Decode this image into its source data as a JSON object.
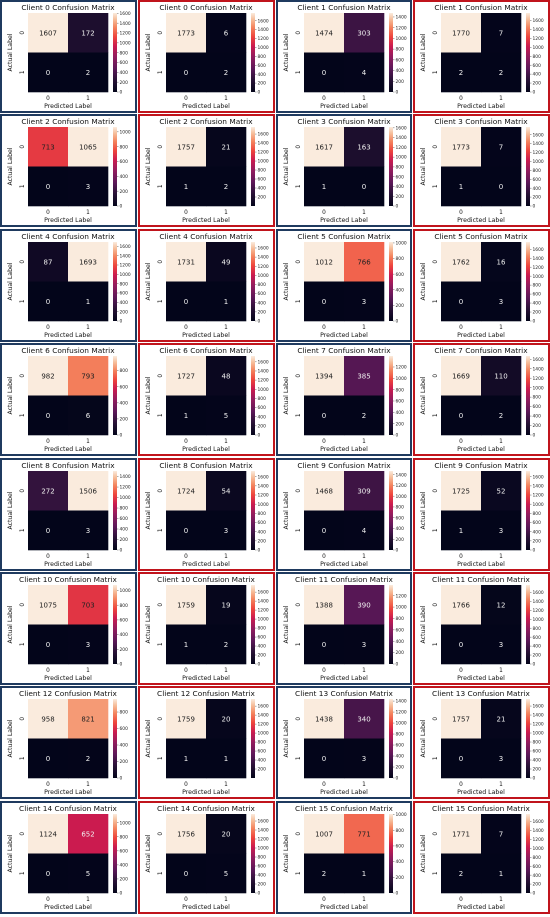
{
  "chart_data": [
    {
      "type": "heatmap",
      "title": "Client 0 Confusion Matrix",
      "xlabel": "Predicted Label",
      "ylabel": "Actual Label",
      "x_ticks": [
        "0",
        "1"
      ],
      "y_ticks": [
        "0",
        "1"
      ],
      "values": [
        [
          1607,
          172
        ],
        [
          0,
          2
        ]
      ],
      "colorbar_ticks": [
        0,
        200,
        400,
        600,
        800,
        1000,
        1200,
        1400,
        1600
      ],
      "colorbar_range": [
        0,
        1607
      ],
      "frame": "blue"
    },
    {
      "type": "heatmap",
      "title": "Client 0 Confusion Matrix",
      "xlabel": "Predicted Label",
      "ylabel": "Actual Label",
      "x_ticks": [
        "0",
        "1"
      ],
      "y_ticks": [
        "0",
        "1"
      ],
      "values": [
        [
          1773,
          6
        ],
        [
          0,
          2
        ]
      ],
      "colorbar_ticks": [
        0,
        200,
        400,
        600,
        800,
        1000,
        1200,
        1400,
        1600
      ],
      "colorbar_range": [
        0,
        1773
      ],
      "frame": "red"
    },
    {
      "type": "heatmap",
      "title": "Client 1 Confusion Matrix",
      "xlabel": "Predicted Label",
      "ylabel": "Actual Label",
      "x_ticks": [
        "0",
        "1"
      ],
      "y_ticks": [
        "0",
        "1"
      ],
      "values": [
        [
          1474,
          303
        ],
        [
          0,
          4
        ]
      ],
      "colorbar_ticks": [
        0,
        200,
        400,
        600,
        800,
        1000,
        1200,
        1400
      ],
      "colorbar_range": [
        0,
        1474
      ],
      "frame": "blue"
    },
    {
      "type": "heatmap",
      "title": "Client 1 Confusion Matrix",
      "xlabel": "Predicted Label",
      "ylabel": "Actual Label",
      "x_ticks": [
        "0",
        "1"
      ],
      "y_ticks": [
        "0",
        "1"
      ],
      "values": [
        [
          1770,
          7
        ],
        [
          2,
          2
        ]
      ],
      "colorbar_ticks": [
        0,
        200,
        400,
        600,
        800,
        1000,
        1200,
        1400,
        1600
      ],
      "colorbar_range": [
        0,
        1770
      ],
      "frame": "red"
    },
    {
      "type": "heatmap",
      "title": "Client 2 Confusion Matrix",
      "xlabel": "Predicted Label",
      "ylabel": "Actual Label",
      "x_ticks": [
        "0",
        "1"
      ],
      "y_ticks": [
        "0",
        "1"
      ],
      "values": [
        [
          713,
          1065
        ],
        [
          0,
          3
        ]
      ],
      "colorbar_ticks": [
        0,
        200,
        400,
        600,
        800,
        1000
      ],
      "colorbar_range": [
        0,
        1065
      ],
      "frame": "blue"
    },
    {
      "type": "heatmap",
      "title": "Client 2 Confusion Matrix",
      "xlabel": "Predicted Label",
      "ylabel": "Actual Label",
      "x_ticks": [
        "0",
        "1"
      ],
      "y_ticks": [
        "0",
        "1"
      ],
      "values": [
        [
          1757,
          21
        ],
        [
          1,
          2
        ]
      ],
      "colorbar_ticks": [
        200,
        400,
        600,
        800,
        1000,
        1200,
        1400,
        1600
      ],
      "colorbar_range": [
        0,
        1757
      ],
      "frame": "red"
    },
    {
      "type": "heatmap",
      "title": "Client 3 Confusion Matrix",
      "xlabel": "Predicted Label",
      "ylabel": "Actual Label",
      "x_ticks": [
        "0",
        "1"
      ],
      "y_ticks": [
        "0",
        "1"
      ],
      "values": [
        [
          1617,
          163
        ],
        [
          1,
          0
        ]
      ],
      "colorbar_ticks": [
        0,
        200,
        400,
        600,
        800,
        1000,
        1200,
        1400,
        1600
      ],
      "colorbar_range": [
        0,
        1617
      ],
      "frame": "blue"
    },
    {
      "type": "heatmap",
      "title": "Client 3 Confusion Matrix",
      "xlabel": "Predicted Label",
      "ylabel": "Actual Label",
      "x_ticks": [
        "0",
        "1"
      ],
      "y_ticks": [
        "0",
        "1"
      ],
      "values": [
        [
          1773,
          7
        ],
        [
          1,
          0
        ]
      ],
      "colorbar_ticks": [
        0,
        200,
        400,
        600,
        800,
        1000,
        1200,
        1400,
        1600
      ],
      "colorbar_range": [
        0,
        1773
      ],
      "frame": "red"
    },
    {
      "type": "heatmap",
      "title": "Client 4 Confusion Matrix",
      "xlabel": "Predicted Label",
      "ylabel": "Actual Label",
      "x_ticks": [
        "0",
        "1"
      ],
      "y_ticks": [
        "0",
        "1"
      ],
      "values": [
        [
          87,
          1693
        ],
        [
          0,
          1
        ]
      ],
      "colorbar_ticks": [
        0,
        200,
        400,
        600,
        800,
        1000,
        1200,
        1400,
        1600
      ],
      "colorbar_range": [
        0,
        1693
      ],
      "frame": "blue"
    },
    {
      "type": "heatmap",
      "title": "Client 4 Confusion Matrix",
      "xlabel": "Predicted Label",
      "ylabel": "Actual Label",
      "x_ticks": [
        "0",
        "1"
      ],
      "y_ticks": [
        "0",
        "1"
      ],
      "values": [
        [
          1731,
          49
        ],
        [
          0,
          1
        ]
      ],
      "colorbar_ticks": [
        0,
        200,
        400,
        600,
        800,
        1000,
        1200,
        1400,
        1600
      ],
      "colorbar_range": [
        0,
        1731
      ],
      "frame": "red"
    },
    {
      "type": "heatmap",
      "title": "Client 5 Confusion Matrix",
      "xlabel": "Predicted Label",
      "ylabel": "Actual Label",
      "x_ticks": [
        "0",
        "1"
      ],
      "y_ticks": [
        "0",
        "1"
      ],
      "values": [
        [
          1012,
          766
        ],
        [
          0,
          3
        ]
      ],
      "colorbar_ticks": [
        0,
        200,
        400,
        600,
        800,
        1000
      ],
      "colorbar_range": [
        0,
        1012
      ],
      "frame": "blue"
    },
    {
      "type": "heatmap",
      "title": "Client 5 Confusion Matrix",
      "xlabel": "Predicted Label",
      "ylabel": "Actual Label",
      "x_ticks": [
        "0",
        "1"
      ],
      "y_ticks": [
        "0",
        "1"
      ],
      "values": [
        [
          1762,
          16
        ],
        [
          0,
          3
        ]
      ],
      "colorbar_ticks": [
        0,
        200,
        400,
        600,
        800,
        1000,
        1200,
        1400,
        1600
      ],
      "colorbar_range": [
        0,
        1762
      ],
      "frame": "red"
    },
    {
      "type": "heatmap",
      "title": "Client 6 Confusion Matrix",
      "xlabel": "Predicted Label",
      "ylabel": "Actual Label",
      "x_ticks": [
        "0",
        "1"
      ],
      "y_ticks": [
        "0",
        "1"
      ],
      "values": [
        [
          982,
          793
        ],
        [
          0,
          6
        ]
      ],
      "colorbar_ticks": [
        0,
        200,
        400,
        600,
        800
      ],
      "colorbar_range": [
        0,
        982
      ],
      "frame": "blue"
    },
    {
      "type": "heatmap",
      "title": "Client 6 Confusion Matrix",
      "xlabel": "Predicted Label",
      "ylabel": "Actual Label",
      "x_ticks": [
        "0",
        "1"
      ],
      "y_ticks": [
        "0",
        "1"
      ],
      "values": [
        [
          1727,
          48
        ],
        [
          1,
          5
        ]
      ],
      "colorbar_ticks": [
        0,
        200,
        400,
        600,
        800,
        1000,
        1200,
        1400,
        1600
      ],
      "colorbar_range": [
        0,
        1727
      ],
      "frame": "red"
    },
    {
      "type": "heatmap",
      "title": "Client 7 Confusion Matrix",
      "xlabel": "Predicted Label",
      "ylabel": "Actual Label",
      "x_ticks": [
        "0",
        "1"
      ],
      "y_ticks": [
        "0",
        "1"
      ],
      "values": [
        [
          1394,
          385
        ],
        [
          0,
          2
        ]
      ],
      "colorbar_ticks": [
        0,
        200,
        400,
        600,
        800,
        1000,
        1200
      ],
      "colorbar_range": [
        0,
        1394
      ],
      "frame": "blue"
    },
    {
      "type": "heatmap",
      "title": "Client 7 Confusion Matrix",
      "xlabel": "Predicted Label",
      "ylabel": "Actual Label",
      "x_ticks": [
        "0",
        "1"
      ],
      "y_ticks": [
        "0",
        "1"
      ],
      "values": [
        [
          1669,
          110
        ],
        [
          0,
          2
        ]
      ],
      "colorbar_ticks": [
        0,
        200,
        400,
        600,
        800,
        1000,
        1200,
        1400,
        1600
      ],
      "colorbar_range": [
        0,
        1669
      ],
      "frame": "red"
    },
    {
      "type": "heatmap",
      "title": "Client 8 Confusion Matrix",
      "xlabel": "Predicted Label",
      "ylabel": "Actual Label",
      "x_ticks": [
        "0",
        "1"
      ],
      "y_ticks": [
        "0",
        "1"
      ],
      "values": [
        [
          272,
          1506
        ],
        [
          0,
          3
        ]
      ],
      "colorbar_ticks": [
        0,
        200,
        400,
        600,
        800,
        1000,
        1200,
        1400
      ],
      "colorbar_range": [
        0,
        1506
      ],
      "frame": "blue"
    },
    {
      "type": "heatmap",
      "title": "Client 8 Confusion Matrix",
      "xlabel": "Predicted Label",
      "ylabel": "Actual Label",
      "x_ticks": [
        "0",
        "1"
      ],
      "y_ticks": [
        "0",
        "1"
      ],
      "values": [
        [
          1724,
          54
        ],
        [
          0,
          3
        ]
      ],
      "colorbar_ticks": [
        0,
        200,
        400,
        600,
        800,
        1000,
        1200,
        1400,
        1600
      ],
      "colorbar_range": [
        0,
        1724
      ],
      "frame": "red"
    },
    {
      "type": "heatmap",
      "title": "Client 9 Confusion Matrix",
      "xlabel": "Predicted Label",
      "ylabel": "Actual Label",
      "x_ticks": [
        "0",
        "1"
      ],
      "y_ticks": [
        "0",
        "1"
      ],
      "values": [
        [
          1468,
          309
        ],
        [
          0,
          4
        ]
      ],
      "colorbar_ticks": [
        0,
        200,
        400,
        600,
        800,
        1000,
        1200,
        1400
      ],
      "colorbar_range": [
        0,
        1468
      ],
      "frame": "blue"
    },
    {
      "type": "heatmap",
      "title": "Client 9 Confusion Matrix",
      "xlabel": "Predicted Label",
      "ylabel": "Actual Label",
      "x_ticks": [
        "0",
        "1"
      ],
      "y_ticks": [
        "0",
        "1"
      ],
      "values": [
        [
          1725,
          52
        ],
        [
          1,
          3
        ]
      ],
      "colorbar_ticks": [
        0,
        200,
        400,
        600,
        800,
        1000,
        1200,
        1400,
        1600
      ],
      "colorbar_range": [
        0,
        1725
      ],
      "frame": "red"
    },
    {
      "type": "heatmap",
      "title": "Client 10 Confusion Matrix",
      "xlabel": "Predicted Label",
      "ylabel": "Actual Label",
      "x_ticks": [
        "0",
        "1"
      ],
      "y_ticks": [
        "0",
        "1"
      ],
      "values": [
        [
          1075,
          703
        ],
        [
          0,
          3
        ]
      ],
      "colorbar_ticks": [
        0,
        200,
        400,
        600,
        800,
        1000
      ],
      "colorbar_range": [
        0,
        1075
      ],
      "frame": "blue"
    },
    {
      "type": "heatmap",
      "title": "Client 10 Confusion Matrix",
      "xlabel": "Predicted Label",
      "ylabel": "Actual Label",
      "x_ticks": [
        "0",
        "1"
      ],
      "y_ticks": [
        "0",
        "1"
      ],
      "values": [
        [
          1759,
          19
        ],
        [
          1,
          2
        ]
      ],
      "colorbar_ticks": [
        0,
        200,
        400,
        600,
        800,
        1000,
        1200,
        1400,
        1600
      ],
      "colorbar_range": [
        0,
        1759
      ],
      "frame": "red"
    },
    {
      "type": "heatmap",
      "title": "Client 11 Confusion Matrix",
      "xlabel": "Predicted Label",
      "ylabel": "Actual Label",
      "x_ticks": [
        "0",
        "1"
      ],
      "y_ticks": [
        "0",
        "1"
      ],
      "values": [
        [
          1388,
          390
        ],
        [
          0,
          3
        ]
      ],
      "colorbar_ticks": [
        0,
        200,
        400,
        600,
        800,
        1000,
        1200
      ],
      "colorbar_range": [
        0,
        1388
      ],
      "frame": "blue"
    },
    {
      "type": "heatmap",
      "title": "Client 11 Confusion Matrix",
      "xlabel": "Predicted Label",
      "ylabel": "Actual Label",
      "x_ticks": [
        "0",
        "1"
      ],
      "y_ticks": [
        "0",
        "1"
      ],
      "values": [
        [
          1766,
          12
        ],
        [
          0,
          3
        ]
      ],
      "colorbar_ticks": [
        0,
        200,
        400,
        600,
        800,
        1000,
        1200,
        1400,
        1600
      ],
      "colorbar_range": [
        0,
        1766
      ],
      "frame": "red"
    },
    {
      "type": "heatmap",
      "title": "Client 12 Confusion Matrix",
      "xlabel": "Predicted Label",
      "ylabel": "Actual Label",
      "x_ticks": [
        "0",
        "1"
      ],
      "y_ticks": [
        "0",
        "1"
      ],
      "values": [
        [
          958,
          821
        ],
        [
          0,
          2
        ]
      ],
      "colorbar_ticks": [
        0,
        200,
        400,
        600,
        800
      ],
      "colorbar_range": [
        0,
        958
      ],
      "frame": "blue"
    },
    {
      "type": "heatmap",
      "title": "Client 12 Confusion Matrix",
      "xlabel": "Predicted Label",
      "ylabel": "Actual Label",
      "x_ticks": [
        "0",
        "1"
      ],
      "y_ticks": [
        "0",
        "1"
      ],
      "values": [
        [
          1759,
          20
        ],
        [
          1,
          1
        ]
      ],
      "colorbar_ticks": [
        200,
        400,
        600,
        800,
        1000,
        1200,
        1400,
        1600
      ],
      "colorbar_range": [
        0,
        1759
      ],
      "frame": "red"
    },
    {
      "type": "heatmap",
      "title": "Client 13 Confusion Matrix",
      "xlabel": "Predicted Label",
      "ylabel": "Actual Label",
      "x_ticks": [
        "0",
        "1"
      ],
      "y_ticks": [
        "0",
        "1"
      ],
      "values": [
        [
          1438,
          340
        ],
        [
          0,
          3
        ]
      ],
      "colorbar_ticks": [
        0,
        200,
        400,
        600,
        800,
        1000,
        1200,
        1400
      ],
      "colorbar_range": [
        0,
        1438
      ],
      "frame": "blue"
    },
    {
      "type": "heatmap",
      "title": "Client 13 Confusion Matrix",
      "xlabel": "Predicted Label",
      "ylabel": "Actual Label",
      "x_ticks": [
        "0",
        "1"
      ],
      "y_ticks": [
        "0",
        "1"
      ],
      "values": [
        [
          1757,
          21
        ],
        [
          0,
          3
        ]
      ],
      "colorbar_ticks": [
        0,
        200,
        400,
        600,
        800,
        1000,
        1200,
        1400,
        1600
      ],
      "colorbar_range": [
        0,
        1757
      ],
      "frame": "red"
    },
    {
      "type": "heatmap",
      "title": "Client 14 Confusion Matrix",
      "xlabel": "Predicted Label",
      "ylabel": "Actual Label",
      "x_ticks": [
        "0",
        "1"
      ],
      "y_ticks": [
        "0",
        "1"
      ],
      "values": [
        [
          1124,
          652
        ],
        [
          0,
          5
        ]
      ],
      "colorbar_ticks": [
        0,
        200,
        400,
        600,
        800,
        1000
      ],
      "colorbar_range": [
        0,
        1124
      ],
      "frame": "blue"
    },
    {
      "type": "heatmap",
      "title": "Client 14 Confusion Matrix",
      "xlabel": "Predicted Label",
      "ylabel": "Actual Label",
      "x_ticks": [
        "0",
        "1"
      ],
      "y_ticks": [
        "0",
        "1"
      ],
      "values": [
        [
          1756,
          20
        ],
        [
          0,
          5
        ]
      ],
      "colorbar_ticks": [
        0,
        200,
        400,
        600,
        800,
        1000,
        1200,
        1400,
        1600
      ],
      "colorbar_range": [
        0,
        1756
      ],
      "frame": "red"
    },
    {
      "type": "heatmap",
      "title": "Client 15 Confusion Matrix",
      "xlabel": "Predicted Label",
      "ylabel": "Actual Label",
      "x_ticks": [
        "0",
        "1"
      ],
      "y_ticks": [
        "0",
        "1"
      ],
      "values": [
        [
          1007,
          771
        ],
        [
          2,
          1
        ]
      ],
      "colorbar_ticks": [
        0,
        200,
        400,
        600,
        800,
        1000
      ],
      "colorbar_range": [
        0,
        1007
      ],
      "frame": "blue"
    },
    {
      "type": "heatmap",
      "title": "Client 15 Confusion Matrix",
      "xlabel": "Predicted Label",
      "ylabel": "Actual Label",
      "x_ticks": [
        "0",
        "1"
      ],
      "y_ticks": [
        "0",
        "1"
      ],
      "values": [
        [
          1771,
          7
        ],
        [
          2,
          1
        ]
      ],
      "colorbar_ticks": [
        0,
        200,
        400,
        600,
        800,
        1000,
        1200,
        1400,
        1600
      ],
      "colorbar_range": [
        0,
        1771
      ],
      "frame": "red"
    }
  ],
  "colors": {
    "frame_blue": "#1f3a5f",
    "frame_red": "#c0141c",
    "colormap": "rocket"
  }
}
